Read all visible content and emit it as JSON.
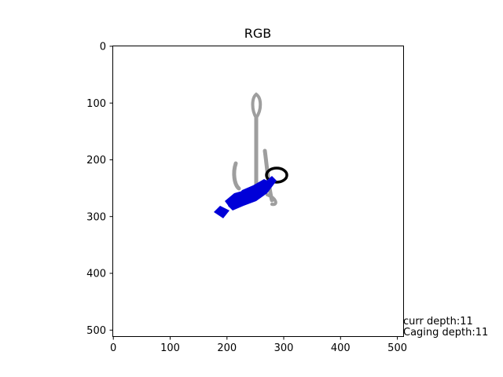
{
  "title": "RGB",
  "axes": {
    "x_ticks": [
      "0",
      "100",
      "200",
      "300",
      "400",
      "500"
    ],
    "y_ticks": [
      "0",
      "100",
      "200",
      "300",
      "400",
      "500"
    ]
  },
  "readouts": {
    "curr_depth": "curr depth:11",
    "caging_depth": "Caging depth:11"
  },
  "colors": {
    "object": "#9e9e9e",
    "gripper": "#0000d8",
    "ring": "#000000"
  }
}
